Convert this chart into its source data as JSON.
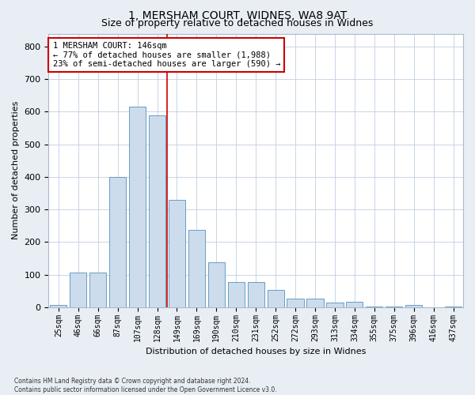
{
  "title": "1, MERSHAM COURT, WIDNES, WA8 9AT",
  "subtitle": "Size of property relative to detached houses in Widnes",
  "xlabel": "Distribution of detached houses by size in Widnes",
  "ylabel": "Number of detached properties",
  "categories": [
    "25sqm",
    "46sqm",
    "66sqm",
    "87sqm",
    "107sqm",
    "128sqm",
    "149sqm",
    "169sqm",
    "190sqm",
    "210sqm",
    "231sqm",
    "252sqm",
    "272sqm",
    "293sqm",
    "313sqm",
    "334sqm",
    "355sqm",
    "375sqm",
    "396sqm",
    "416sqm",
    "437sqm"
  ],
  "values": [
    7,
    107,
    107,
    400,
    615,
    590,
    330,
    238,
    137,
    77,
    77,
    52,
    25,
    25,
    13,
    17,
    3,
    3,
    7,
    0,
    3
  ],
  "bar_color": "#ccdcec",
  "bar_edge_color": "#5590c0",
  "vline_x": 5.5,
  "vline_color": "#cc0000",
  "annotation_text": "1 MERSHAM COURT: 146sqm\n← 77% of detached houses are smaller (1,988)\n23% of semi-detached houses are larger (590) →",
  "annotation_box_color": "#cc0000",
  "ylim": [
    0,
    840
  ],
  "yticks": [
    0,
    100,
    200,
    300,
    400,
    500,
    600,
    700,
    800
  ],
  "footer1": "Contains HM Land Registry data © Crown copyright and database right 2024.",
  "footer2": "Contains public sector information licensed under the Open Government Licence v3.0.",
  "bg_color": "#e8eef4",
  "plot_bg_color": "#ffffff",
  "grid_color": "#c0cfe0",
  "title_fontsize": 10,
  "tick_fontsize": 7,
  "ylabel_fontsize": 8,
  "xlabel_fontsize": 8,
  "annotation_fontsize": 7.5
}
